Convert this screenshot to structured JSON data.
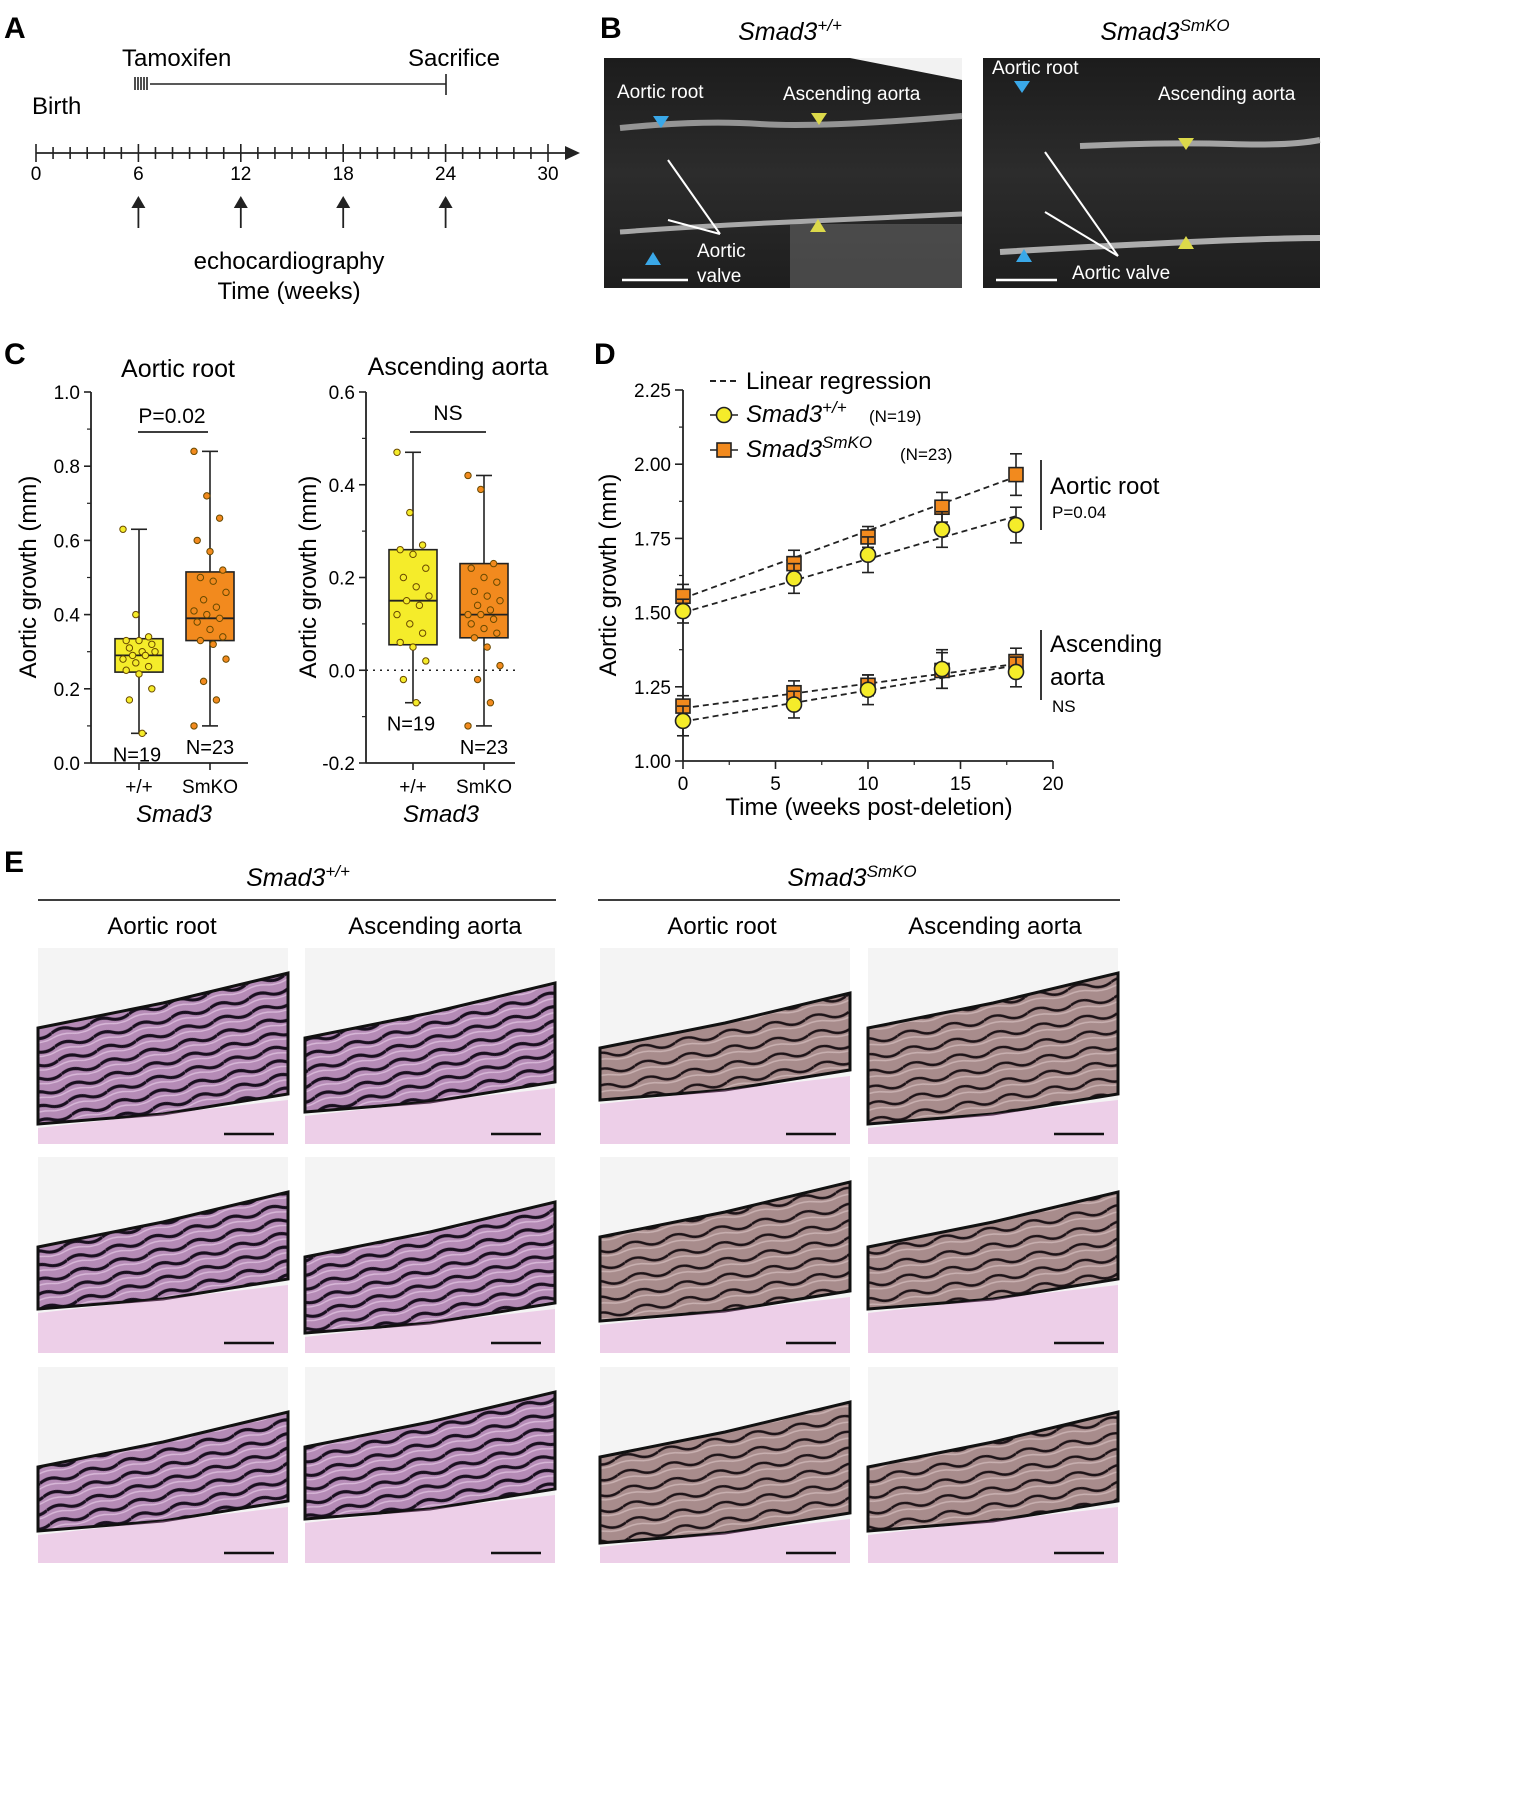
{
  "panel_letters": {
    "a": "A",
    "b": "B",
    "c": "C",
    "d": "D",
    "e": "E"
  },
  "panel_a": {
    "tamoxifen": "Tamoxifen",
    "sacrifice": "Sacrifice",
    "birth": "Birth",
    "ticks": [
      "0",
      "6",
      "12",
      "18",
      "24",
      "30"
    ],
    "echo_label": "echocardiography",
    "time_label": "Time (weeks)"
  },
  "panel_b": {
    "wt_title_base": "Smad3",
    "wt_title_sup": "+/+",
    "ko_title_base": "Smad3",
    "ko_title_sup": "SmKO",
    "aortic_root": "Aortic root",
    "ascending_aorta": "Ascending aorta",
    "aortic_valve_line1": "Aortic",
    "aortic_valve_line2": "valve",
    "aortic_valve": "Aortic valve",
    "colors": {
      "blue_marker": "#3aa8e8",
      "yellow_marker": "#dcd94a"
    }
  },
  "panel_c": {
    "left_title": "Aortic root",
    "right_title": "Ascending aorta",
    "ylabel": "Aortic growth (mm)",
    "left_yticks": [
      "0.0",
      "0.2",
      "0.4",
      "0.6",
      "0.8",
      "1.0"
    ],
    "right_yticks": [
      "-0.2",
      "0.0",
      "0.2",
      "0.4",
      "0.6"
    ],
    "xticks": [
      "+/+",
      "SmKO"
    ],
    "xlabel": "Smad3",
    "left_sig": "P=0.02",
    "right_sig": "NS",
    "n_wt": "N=19",
    "n_ko": "N=23",
    "colors": {
      "wt": "#f5ec2a",
      "ko": "#f28a1e"
    }
  },
  "panel_d": {
    "legend_regression": "Linear regression",
    "legend_wt_base": "Smad3",
    "legend_wt_sup": "+/+",
    "legend_wt_n": "(N=19)",
    "legend_ko_base": "Smad3",
    "legend_ko_sup": "SmKO",
    "legend_ko_n": "(N=23)",
    "ylabel": "Aortic growth (mm)",
    "xlabel": "Time (weeks post-deletion)",
    "yticks": [
      "1.00",
      "1.25",
      "1.50",
      "1.75",
      "2.00",
      "2.25"
    ],
    "xticks": [
      "0",
      "5",
      "10",
      "15",
      "20"
    ],
    "root_label": "Aortic root",
    "root_p": "P=0.04",
    "asc_label_1": "Ascending",
    "asc_label_2": "aorta",
    "asc_ns": "NS"
  },
  "panel_e": {
    "wt_title_base": "Smad3",
    "wt_title_sup": "+/+",
    "ko_title_base": "Smad3",
    "ko_title_sup": "SmKO",
    "col_root": "Aortic root",
    "col_asc": "Ascending aorta"
  },
  "chart_data": [
    {
      "type": "box",
      "panel": "C-left",
      "title": "Aortic root",
      "ylabel": "Aortic growth (mm)",
      "xlabel": "Smad3",
      "categories": [
        "+/+",
        "SmKO"
      ],
      "ylim": [
        0,
        1.0
      ],
      "annotation": "P=0.02",
      "boxes": [
        {
          "name": "+/+",
          "min": 0.08,
          "q1": 0.245,
          "median": 0.29,
          "q3": 0.335,
          "max": 0.63,
          "n": "N=19",
          "points": [
            0.63,
            0.4,
            0.34,
            0.33,
            0.33,
            0.32,
            0.31,
            0.3,
            0.3,
            0.29,
            0.29,
            0.28,
            0.27,
            0.26,
            0.25,
            0.24,
            0.2,
            0.17,
            0.08
          ]
        },
        {
          "name": "SmKO",
          "min": 0.1,
          "q1": 0.33,
          "median": 0.39,
          "q3": 0.515,
          "max": 0.84,
          "n": "N=23",
          "points": [
            0.84,
            0.72,
            0.66,
            0.6,
            0.57,
            0.52,
            0.5,
            0.49,
            0.46,
            0.44,
            0.42,
            0.41,
            0.4,
            0.39,
            0.38,
            0.36,
            0.34,
            0.33,
            0.32,
            0.28,
            0.22,
            0.17,
            0.1
          ]
        }
      ]
    },
    {
      "type": "box",
      "panel": "C-right",
      "title": "Ascending aorta",
      "ylabel": "Aortic growth (mm)",
      "xlabel": "Smad3",
      "categories": [
        "+/+",
        "SmKO"
      ],
      "ylim": [
        -0.2,
        0.6
      ],
      "annotation": "NS",
      "boxes": [
        {
          "name": "+/+",
          "min": -0.07,
          "q1": 0.055,
          "median": 0.15,
          "q3": 0.26,
          "max": 0.47,
          "n": "N=19",
          "points": [
            0.47,
            0.34,
            0.27,
            0.26,
            0.25,
            0.22,
            0.2,
            0.18,
            0.16,
            0.15,
            0.14,
            0.12,
            0.1,
            0.08,
            0.06,
            0.05,
            0.02,
            -0.02,
            -0.07
          ]
        },
        {
          "name": "SmKO",
          "min": -0.12,
          "q1": 0.07,
          "median": 0.12,
          "q3": 0.23,
          "max": 0.42,
          "n": "N=23",
          "points": [
            0.42,
            0.39,
            0.23,
            0.22,
            0.2,
            0.19,
            0.17,
            0.16,
            0.15,
            0.14,
            0.13,
            0.12,
            0.12,
            0.11,
            0.1,
            0.09,
            0.08,
            0.07,
            0.05,
            0.01,
            -0.02,
            -0.07,
            -0.12
          ]
        }
      ]
    },
    {
      "type": "line",
      "panel": "D",
      "xlabel": "Time (weeks post-deletion)",
      "ylabel": "Aortic growth (mm)",
      "xlim": [
        0,
        20
      ],
      "ylim": [
        1.0,
        2.25
      ],
      "x": [
        0,
        6,
        10,
        14,
        18
      ],
      "series": [
        {
          "name": "Smad3 SmKO root",
          "marker": "square",
          "values": [
            1.555,
            1.665,
            1.755,
            1.855,
            1.965
          ],
          "err": [
            0.04,
            0.045,
            0.035,
            0.05,
            0.07
          ],
          "fit": [
            1.548,
            1.958
          ]
        },
        {
          "name": "Smad3 +/+ root",
          "marker": "circle",
          "values": [
            1.505,
            1.615,
            1.695,
            1.78,
            1.795
          ],
          "err": [
            0.04,
            0.05,
            0.06,
            0.06,
            0.06
          ],
          "fit": [
            1.5,
            1.825
          ]
        },
        {
          "name": "Smad3 SmKO asc",
          "marker": "square",
          "values": [
            1.185,
            1.23,
            1.255,
            1.305,
            1.335
          ],
          "err": [
            0.035,
            0.04,
            0.035,
            0.06,
            0.045
          ],
          "fit": [
            1.178,
            1.327
          ]
        },
        {
          "name": "Smad3 +/+ asc",
          "marker": "circle",
          "values": [
            1.135,
            1.19,
            1.24,
            1.31,
            1.3
          ],
          "err": [
            0.05,
            0.045,
            0.05,
            0.065,
            0.05
          ],
          "fit": [
            1.133,
            1.322
          ]
        }
      ]
    }
  ]
}
